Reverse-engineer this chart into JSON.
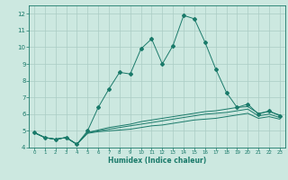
{
  "title": "",
  "xlabel": "Humidex (Indice chaleur)",
  "x": [
    0,
    1,
    2,
    3,
    4,
    5,
    6,
    7,
    8,
    9,
    10,
    11,
    12,
    13,
    14,
    15,
    16,
    17,
    18,
    19,
    20,
    21,
    22,
    23
  ],
  "line1": [
    4.9,
    4.6,
    4.5,
    4.6,
    4.2,
    5.0,
    6.4,
    7.5,
    8.5,
    8.4,
    9.9,
    10.5,
    9.0,
    10.1,
    11.9,
    11.7,
    10.3,
    8.7,
    7.3,
    6.4,
    6.6,
    6.0,
    6.2,
    5.9
  ],
  "line2": [
    4.9,
    4.6,
    4.5,
    4.6,
    4.2,
    4.9,
    5.05,
    5.2,
    5.3,
    5.4,
    5.55,
    5.65,
    5.75,
    5.85,
    5.95,
    6.05,
    6.15,
    6.2,
    6.3,
    6.4,
    6.45,
    6.05,
    6.15,
    5.95
  ],
  "line3": [
    4.9,
    4.6,
    4.5,
    4.6,
    4.2,
    4.9,
    5.0,
    5.1,
    5.2,
    5.3,
    5.4,
    5.5,
    5.6,
    5.7,
    5.8,
    5.9,
    6.0,
    6.05,
    6.1,
    6.2,
    6.3,
    5.9,
    6.0,
    5.8
  ],
  "line4": [
    4.9,
    4.6,
    4.5,
    4.6,
    4.2,
    4.85,
    4.95,
    5.0,
    5.05,
    5.1,
    5.2,
    5.3,
    5.35,
    5.45,
    5.55,
    5.65,
    5.7,
    5.75,
    5.85,
    5.95,
    6.05,
    5.75,
    5.85,
    5.7
  ],
  "line_color": "#1a7a6a",
  "bg_color": "#cce8e0",
  "grid_color": "#aaccc4",
  "ylim": [
    4.0,
    12.5
  ],
  "xlim": [
    -0.5,
    23.5
  ],
  "yticks": [
    4,
    5,
    6,
    7,
    8,
    9,
    10,
    11,
    12
  ]
}
